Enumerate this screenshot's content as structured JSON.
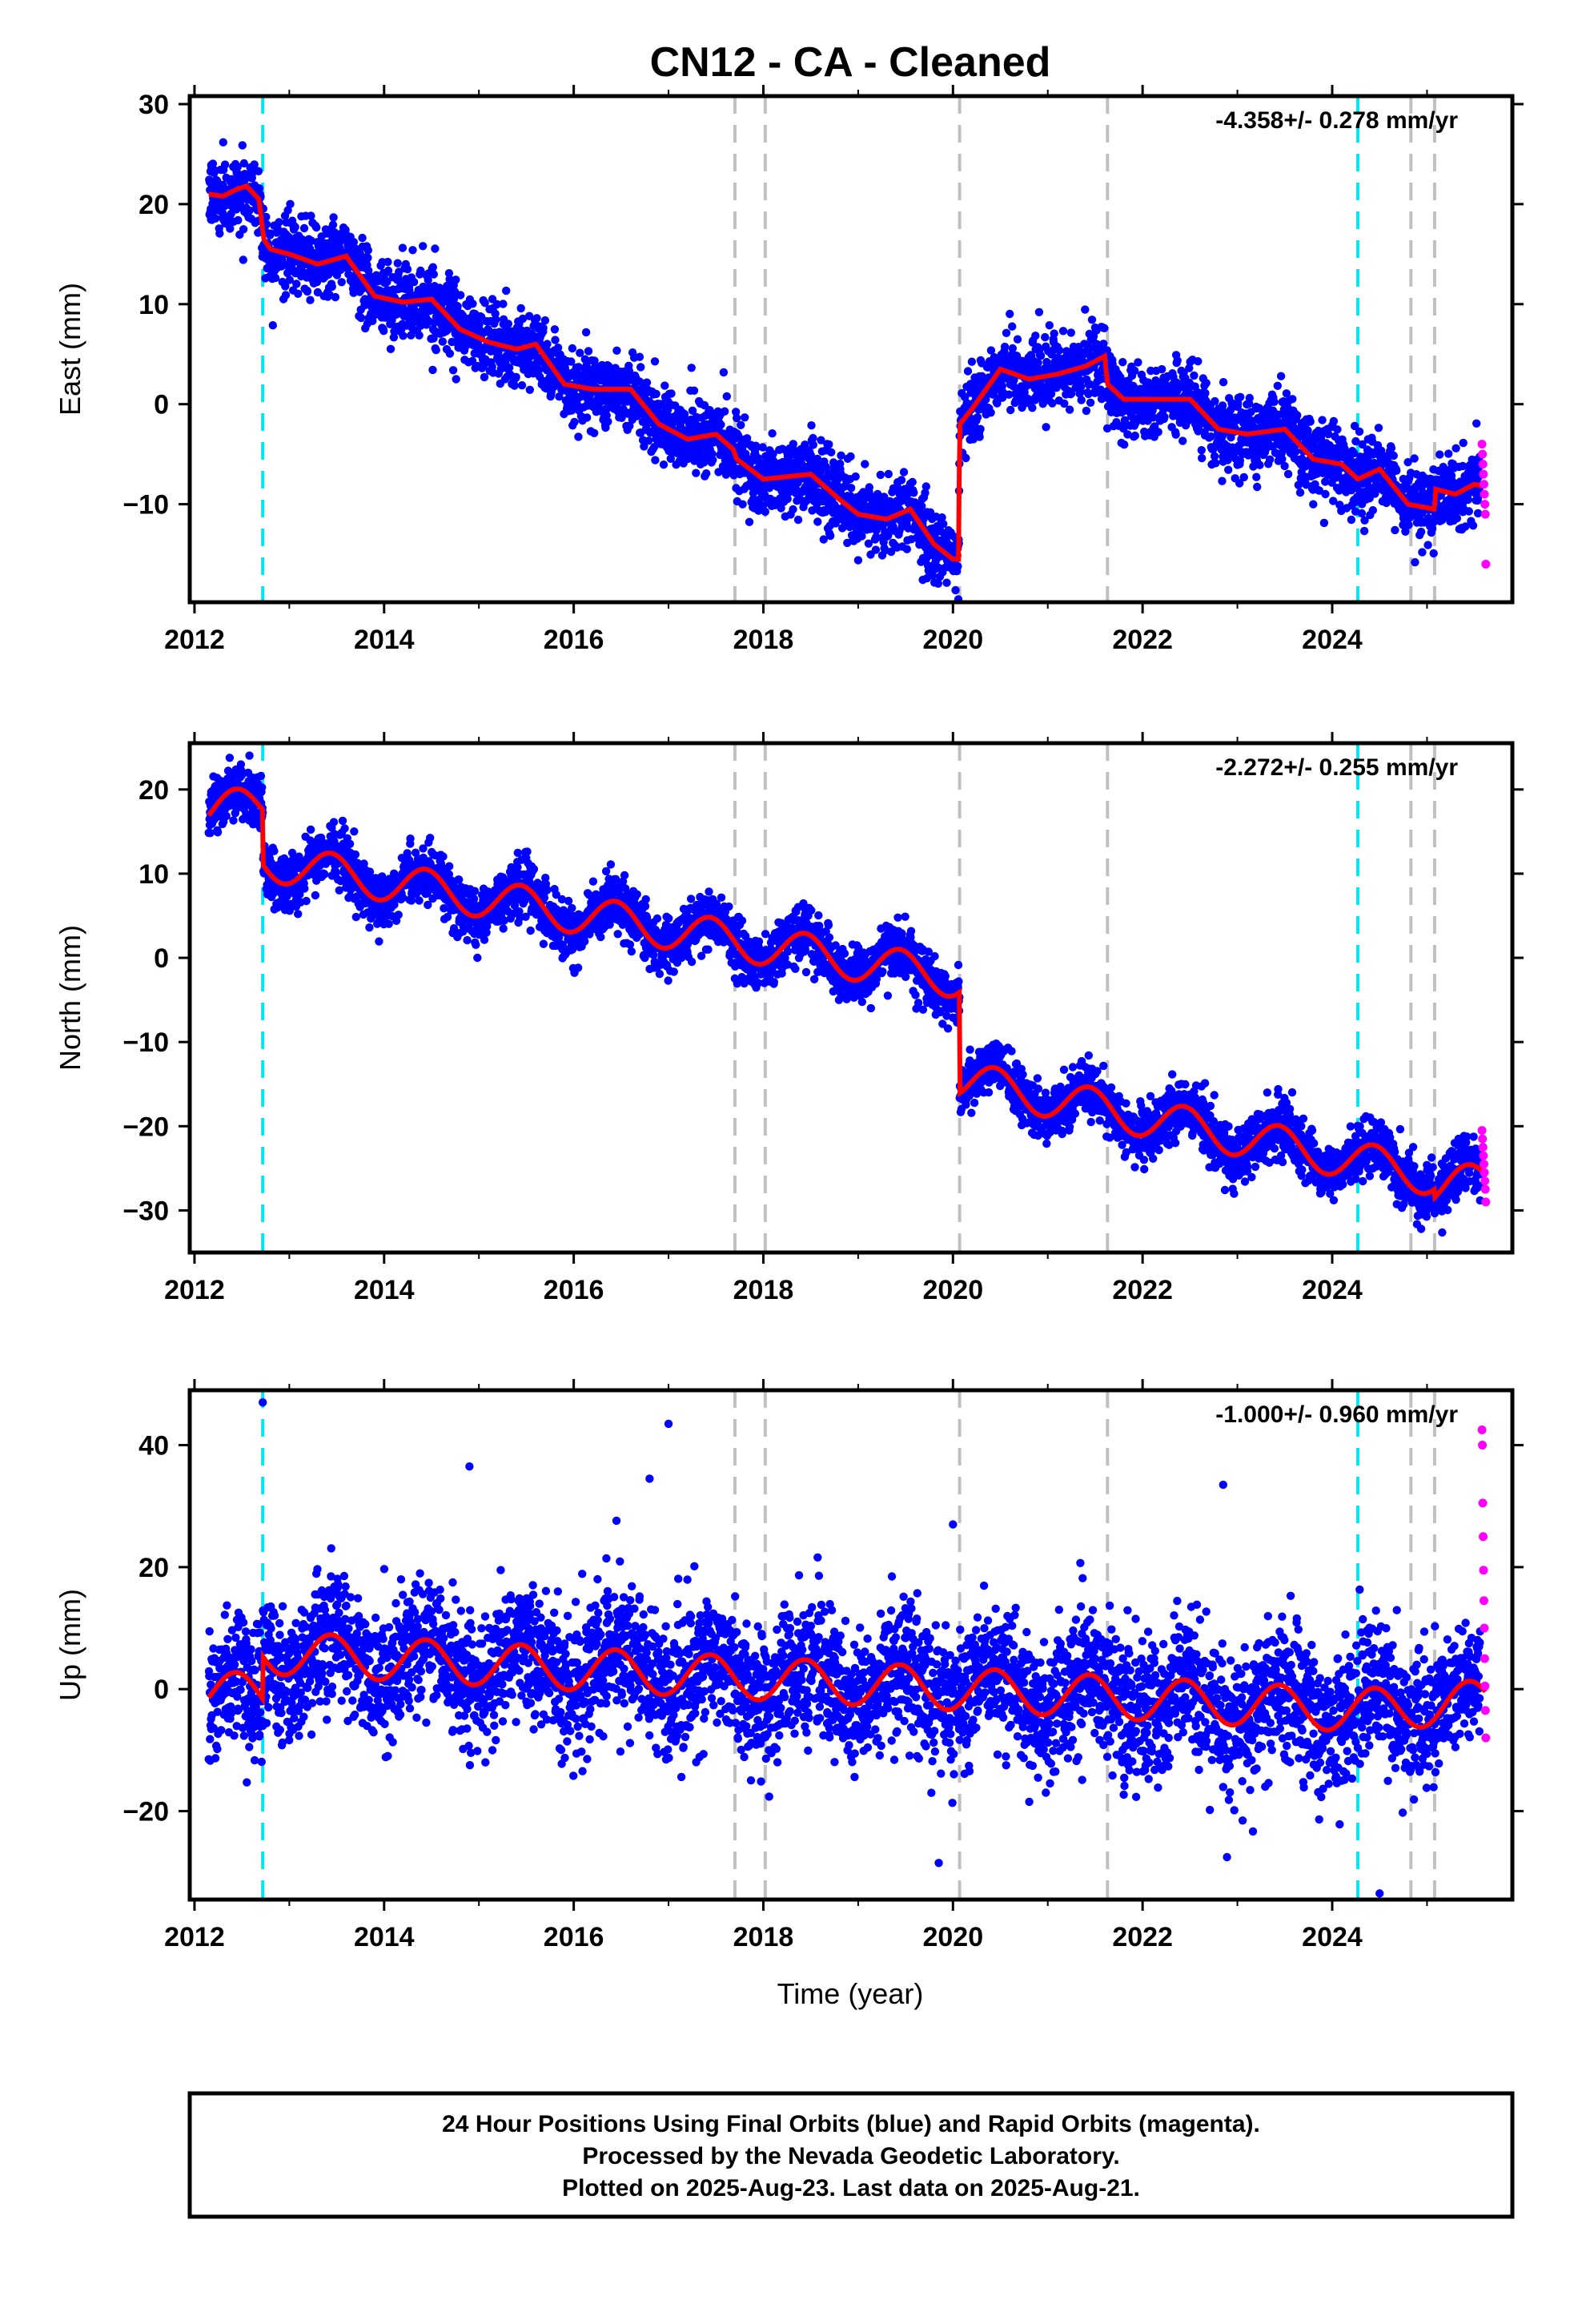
{
  "title": "CN12  - CA - Cleaned",
  "footer": {
    "line1": "24 Hour Positions Using Final Orbits (blue) and Rapid Orbits (magenta).",
    "line2": "Processed by the Nevada Geodetic Laboratory.",
    "line3": "Plotted on 2025-Aug-23. Last data on 2025-Aug-21."
  },
  "colors": {
    "final_orbits": "#0000ff",
    "rapid_orbits": "#ff00ff",
    "model": "#ff0000",
    "equipment_change": "#00e5ee",
    "event_marker": "#c0c0c0"
  },
  "chart_data": [
    {
      "type": "scatter",
      "panel": "east",
      "xlabel": "",
      "ylabel": "East (mm)",
      "rate_text": "-4.358+/- 0.278 mm/yr",
      "xlim": [
        2011.95,
        2025.9
      ],
      "ylim": [
        -19.8,
        30.8
      ],
      "xticks": [
        2012,
        2014,
        2016,
        2018,
        2020,
        2022,
        2024
      ],
      "xtick_labels": [
        "2012",
        "2014",
        "2016",
        "2018",
        "2020",
        "2022",
        "2024"
      ],
      "yticks": [
        -10,
        0,
        10,
        20,
        30
      ],
      "ytick_labels": [
        "−10",
        "0",
        "10",
        "20",
        "30"
      ],
      "grid": false,
      "vlines_cyan": [
        2012.72,
        2024.27
      ],
      "vlines_gray": [
        2017.7,
        2018.02,
        2020.07,
        2021.63,
        2024.83,
        2025.08
      ],
      "model_series": {
        "name": "model",
        "x": [
          2012.15,
          2012.3,
          2012.45,
          2012.55,
          2012.68,
          2012.73,
          2012.8,
          2013.0,
          2013.3,
          2013.6,
          2013.9,
          2014.2,
          2014.5,
          2014.8,
          2015.1,
          2015.4,
          2015.6,
          2015.9,
          2016.2,
          2016.6,
          2016.9,
          2017.2,
          2017.5,
          2017.68,
          2017.72,
          2018.0,
          2018.5,
          2018.8,
          2019.0,
          2019.3,
          2019.55,
          2019.8,
          2020.0,
          2020.06,
          2020.07,
          2020.2,
          2020.5,
          2020.8,
          2021.1,
          2021.4,
          2021.6,
          2021.63,
          2021.8,
          2022.1,
          2022.5,
          2022.8,
          2023.1,
          2023.5,
          2023.8,
          2024.1,
          2024.27,
          2024.5,
          2024.8,
          2025.08,
          2025.09,
          2025.3,
          2025.5,
          2025.6
        ],
        "values": [
          21.0,
          20.8,
          21.5,
          21.8,
          20.5,
          16.5,
          15.5,
          15.0,
          14.0,
          14.8,
          10.8,
          10.2,
          10.5,
          7.5,
          6.2,
          5.5,
          6.0,
          2.0,
          1.5,
          1.5,
          -2.0,
          -3.5,
          -3.0,
          -4.5,
          -5.5,
          -7.5,
          -7.0,
          -9.5,
          -11.0,
          -11.5,
          -10.5,
          -14.0,
          -15.5,
          -15.5,
          -2.0,
          -0.5,
          3.5,
          2.5,
          3.0,
          3.8,
          4.8,
          2.0,
          0.5,
          0.5,
          0.5,
          -2.5,
          -3.0,
          -2.5,
          -5.5,
          -6.0,
          -7.5,
          -6.5,
          -10.0,
          -10.5,
          -8.5,
          -9.0,
          -8.0,
          -8.2
        ]
      },
      "trend": [
        {
          "from": 2012.15,
          "to": 2012.72,
          "start": 21.2,
          "end": 21.0
        },
        {
          "from": 2012.72,
          "to": 2020.07,
          "start": 15.5,
          "end": -14.8
        },
        {
          "from": 2020.07,
          "to": 2024.27,
          "start": 2.8,
          "end": -6.2
        },
        {
          "from": 2024.27,
          "to": 2025.08,
          "start": -7.0,
          "end": -9.3
        },
        {
          "from": 2025.08,
          "to": 2025.62,
          "start": -8.6,
          "end": -8.8
        }
      ],
      "steps": [
        {
          "at": 2012.72,
          "shift": 0.0
        },
        {
          "at": 2020.07,
          "shift": 0.0
        }
      ],
      "noise_mm": 1.8,
      "seasonal_amplitude": 1.3,
      "rapid_points": {
        "x_start": 2025.58,
        "x_end": 2025.62,
        "values": [
          -4.0,
          -5.0,
          -6.0,
          -7.0,
          -8.0,
          -9.0,
          -10.0,
          -11.0,
          -16.0
        ]
      }
    },
    {
      "type": "scatter",
      "panel": "north",
      "xlabel": "",
      "ylabel": "North (mm)",
      "rate_text": "-2.272+/- 0.255 mm/yr",
      "xlim": [
        2011.95,
        2025.9
      ],
      "ylim": [
        -35.0,
        25.5
      ],
      "xticks": [
        2012,
        2014,
        2016,
        2018,
        2020,
        2022,
        2024
      ],
      "xtick_labels": [
        "2012",
        "2014",
        "2016",
        "2018",
        "2020",
        "2022",
        "2024"
      ],
      "yticks": [
        -30,
        -20,
        -10,
        0,
        10,
        20
      ],
      "ytick_labels": [
        "−30",
        "−20",
        "−10",
        "0",
        "10",
        "20"
      ],
      "grid": false,
      "vlines_cyan": [
        2012.72,
        2024.27
      ],
      "vlines_gray": [
        2017.7,
        2018.02,
        2020.07,
        2021.63,
        2024.83,
        2025.08
      ],
      "trend": [
        {
          "from": 2012.15,
          "to": 2012.72,
          "start": 17.5,
          "end": 18.0
        },
        {
          "from": 2012.72,
          "to": 2020.07,
          "start": 11.5,
          "end": -2.5
        },
        {
          "from": 2020.07,
          "to": 2025.08,
          "start": -14.5,
          "end": -26.0
        },
        {
          "from": 2025.08,
          "to": 2025.62,
          "start": -27.0,
          "end": -26.8
        }
      ],
      "steps": [
        {
          "at": 2012.72,
          "shift": 0.0
        },
        {
          "at": 2020.07,
          "shift": 0.0
        }
      ],
      "noise_mm": 1.6,
      "seasonal_amplitude": 2.3,
      "rapid_points": {
        "x_start": 2025.58,
        "x_end": 2025.62,
        "values": [
          -20.5,
          -21.5,
          -22.5,
          -23.5,
          -24.5,
          -25.5,
          -26.5,
          -27.5,
          -29.0
        ]
      }
    },
    {
      "type": "scatter",
      "panel": "up",
      "xlabel": "Time (year)",
      "ylabel": "Up (mm)",
      "rate_text": "-1.000+/- 0.960 mm/yr",
      "xlim": [
        2011.95,
        2025.9
      ],
      "ylim": [
        -34.5,
        49.0
      ],
      "xticks": [
        2012,
        2014,
        2016,
        2018,
        2020,
        2022,
        2024
      ],
      "xtick_labels": [
        "2012",
        "2014",
        "2016",
        "2018",
        "2020",
        "2022",
        "2024"
      ],
      "yticks": [
        -20,
        0,
        20,
        40
      ],
      "ytick_labels": [
        "−20",
        "0",
        "20",
        "40"
      ],
      "grid": false,
      "vlines_cyan": [
        2012.72,
        2024.27
      ],
      "vlines_gray": [
        2017.7,
        2018.02,
        2020.07,
        2021.63,
        2024.83,
        2025.08
      ],
      "trend": [
        {
          "from": 2012.15,
          "to": 2012.72,
          "start": -0.5,
          "end": -1.0
        },
        {
          "from": 2012.72,
          "to": 2020.07,
          "start": 6.0,
          "end": 0.0
        },
        {
          "from": 2020.07,
          "to": 2024.27,
          "start": 0.0,
          "end": -3.5
        },
        {
          "from": 2024.27,
          "to": 2025.62,
          "start": -3.5,
          "end": -2.0
        }
      ],
      "steps": [],
      "noise_mm": 5.5,
      "seasonal_amplitude": 3.5,
      "outliers": [
        {
          "x": 2012.72,
          "y": 47.0
        },
        {
          "x": 2016.8,
          "y": 34.5
        },
        {
          "x": 2017.0,
          "y": 43.5
        },
        {
          "x": 2022.85,
          "y": 33.5
        },
        {
          "x": 2014.9,
          "y": 36.5
        },
        {
          "x": 2019.85,
          "y": -28.5
        },
        {
          "x": 2024.5,
          "y": -33.5
        },
        {
          "x": 2020.0,
          "y": 27.0
        }
      ],
      "rapid_points": {
        "x_start": 2025.58,
        "x_end": 2025.62,
        "values": [
          42.5,
          40.0,
          30.5,
          25.0,
          19.5,
          14.5,
          10.0,
          5.0,
          0.5,
          -3.5,
          -8.0
        ]
      }
    }
  ]
}
